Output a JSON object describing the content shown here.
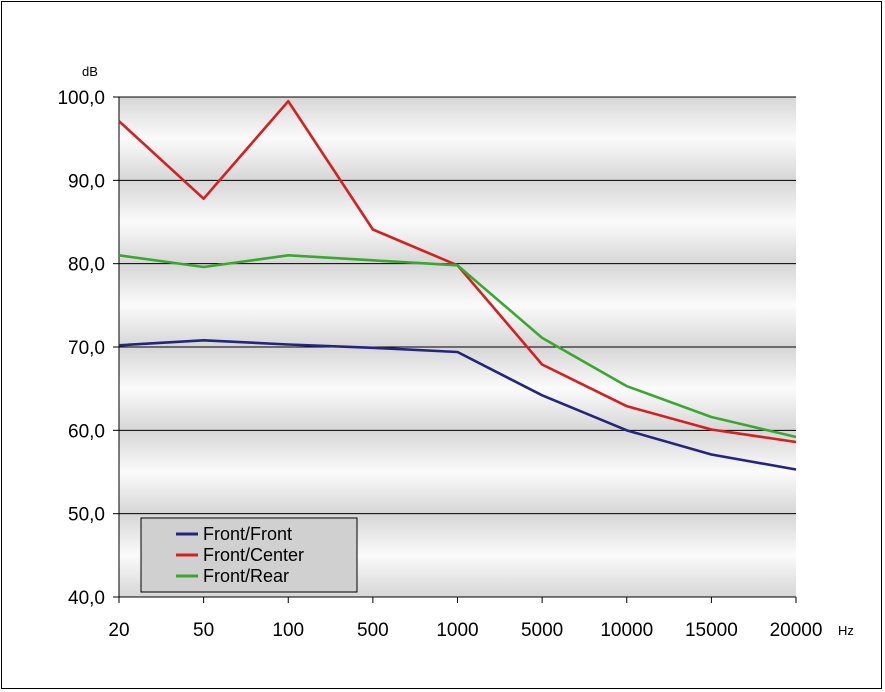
{
  "chart_data": {
    "type": "line",
    "title": "",
    "ylabel": "dB",
    "xlabel": "Hz",
    "ylim": [
      40,
      100
    ],
    "yticks": [
      "40,0",
      "50,0",
      "60,0",
      "70,0",
      "80,0",
      "90,0",
      "100,0"
    ],
    "categories": [
      "20",
      "50",
      "100",
      "500",
      "1000",
      "5000",
      "10000",
      "15000",
      "20000"
    ],
    "grid": true,
    "legend_position": "bottom-left",
    "series": [
      {
        "name": "Front/Front",
        "color": "#25247e",
        "values": [
          70.2,
          70.8,
          70.3,
          69.9,
          69.4,
          64.2,
          60.0,
          57.1,
          55.3
        ]
      },
      {
        "name": "Front/Center",
        "color": "#d42020",
        "values": [
          97.1,
          87.8,
          99.5,
          84.1,
          79.8,
          67.9,
          62.9,
          60.1,
          58.6
        ]
      },
      {
        "name": "Front/Rear",
        "color": "#3aa830",
        "values": [
          81.0,
          79.6,
          81.0,
          80.4,
          79.8,
          71.1,
          65.3,
          61.6,
          59.2
        ]
      }
    ]
  }
}
